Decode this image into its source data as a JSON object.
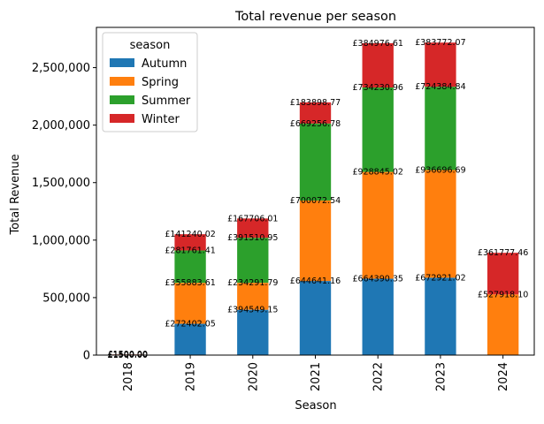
{
  "chart_data": {
    "type": "bar",
    "stacked": true,
    "title": "Total revenue per season",
    "xlabel": "Season",
    "ylabel": "Total Revenue",
    "ylim": [
      0,
      2850000
    ],
    "yticks": [
      "0",
      "500,000",
      "1,000,000",
      "1,500,000",
      "2,000,000",
      "2,500,000"
    ],
    "ytick_values": [
      0,
      500000,
      1000000,
      1500000,
      2000000,
      2500000
    ],
    "categories": [
      "2018",
      "2019",
      "2020",
      "2021",
      "2022",
      "2023",
      "2024"
    ],
    "legend": {
      "title": "season",
      "placement": "upper-left"
    },
    "series": [
      {
        "name": "Autumn",
        "color": "#1f77b4",
        "values": [
          1500,
          272402.05,
          394549.15,
          644641.16,
          664390.35,
          672921.02,
          0
        ],
        "labels": [
          "£1500.00",
          "£272402.05",
          "£394549.15",
          "£644641.16",
          "£664390.35",
          "£672921.02",
          ""
        ]
      },
      {
        "name": "Spring",
        "color": "#ff7f0e",
        "values": [
          1500,
          355883.61,
          234291.79,
          700072.54,
          928845.02,
          936696.69,
          527918.1
        ],
        "labels": [
          "£1500.00",
          "£355883.61",
          "£234291.79",
          "£700072.54",
          "£928845.02",
          "£936696.69",
          "£527918.10"
        ]
      },
      {
        "name": "Summer",
        "color": "#2ca02c",
        "values": [
          1500,
          281761.41,
          391510.95,
          669256.78,
          734230.96,
          724384.84,
          0
        ],
        "labels": [
          "£1500.00",
          "£281761.41",
          "£391510.95",
          "£669256.78",
          "£734230.96",
          "£724384.84",
          ""
        ]
      },
      {
        "name": "Winter",
        "color": "#d62728",
        "values": [
          1500,
          141240.02,
          167706.01,
          183898.77,
          384976.61,
          383772.07,
          361777.46
        ],
        "labels": [
          "£1500.00",
          "£141240.02",
          "£167706.01",
          "£183898.77",
          "£384976.61",
          "£383772.07",
          "£361777.46"
        ]
      }
    ]
  }
}
